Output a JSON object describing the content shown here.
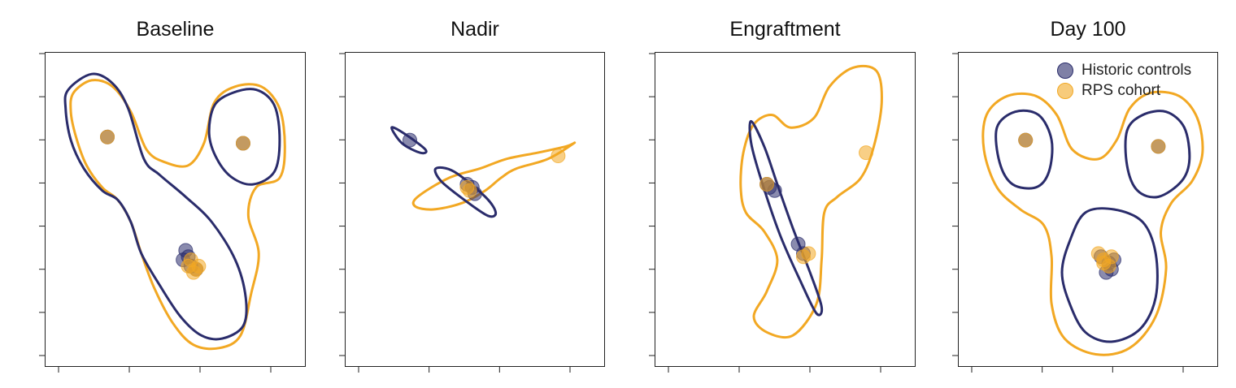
{
  "colors": {
    "historic": "#2a2c6b",
    "rps": "#f2a823"
  },
  "legend": {
    "historic_label": "Historic controls",
    "rps_label": "RPS cohort"
  },
  "chart_data": [
    {
      "type": "scatter",
      "title": "Baseline",
      "xlabel": "",
      "ylabel": "",
      "xlim": [
        0,
        10
      ],
      "ylim": [
        0,
        10
      ],
      "grid": false,
      "series": [
        {
          "name": "Historic controls",
          "color": "#2a2c6b",
          "points": [
            [
              2.4,
              7.3
            ],
            [
              7.6,
              7.1
            ],
            [
              5.4,
              3.7
            ],
            [
              5.3,
              3.4
            ],
            [
              5.6,
              3.2
            ],
            [
              5.8,
              3.1
            ],
            [
              5.5,
              3.5
            ]
          ],
          "contours": [
            [
              [
                0.9,
                8.8
              ],
              [
                1.8,
                9.3
              ],
              [
                2.6,
                9.0
              ],
              [
                3.2,
                8.2
              ],
              [
                3.8,
                6.6
              ],
              [
                4.4,
                6.1
              ],
              [
                5.4,
                5.4
              ],
              [
                6.4,
                4.6
              ],
              [
                7.3,
                3.4
              ],
              [
                7.7,
                2.2
              ],
              [
                7.6,
                1.3
              ],
              [
                6.8,
                0.9
              ],
              [
                6.0,
                1.0
              ],
              [
                5.2,
                1.6
              ],
              [
                4.4,
                2.6
              ],
              [
                3.7,
                3.6
              ],
              [
                3.3,
                4.6
              ],
              [
                2.8,
                5.3
              ],
              [
                2.2,
                5.6
              ],
              [
                1.5,
                6.3
              ],
              [
                1.0,
                7.2
              ],
              [
                0.8,
                8.2
              ],
              [
                0.9,
                8.8
              ]
            ],
            [
              [
                6.5,
                8.3
              ],
              [
                7.2,
                8.7
              ],
              [
                8.1,
                8.8
              ],
              [
                8.8,
                8.3
              ],
              [
                9.0,
                7.2
              ],
              [
                8.8,
                6.2
              ],
              [
                8.0,
                5.8
              ],
              [
                7.2,
                6.0
              ],
              [
                6.6,
                6.6
              ],
              [
                6.3,
                7.4
              ],
              [
                6.5,
                8.3
              ]
            ]
          ]
        },
        {
          "name": "RPS cohort",
          "color": "#f2a823",
          "points": [
            [
              2.4,
              7.3
            ],
            [
              7.6,
              7.1
            ],
            [
              5.8,
              3.1
            ],
            [
              5.5,
              3.2
            ],
            [
              5.9,
              3.2
            ],
            [
              5.7,
              3.0
            ],
            [
              5.6,
              3.4
            ]
          ],
          "contours": [
            [
              [
                1.1,
                8.7
              ],
              [
                1.8,
                9.1
              ],
              [
                2.6,
                8.9
              ],
              [
                3.3,
                8.1
              ],
              [
                3.9,
                6.9
              ],
              [
                4.6,
                6.5
              ],
              [
                5.5,
                6.4
              ],
              [
                6.1,
                7.1
              ],
              [
                6.5,
                8.4
              ],
              [
                7.3,
                8.9
              ],
              [
                8.3,
                8.9
              ],
              [
                9.0,
                8.2
              ],
              [
                9.2,
                7.0
              ],
              [
                9.0,
                6.0
              ],
              [
                8.1,
                5.7
              ],
              [
                7.8,
                4.8
              ],
              [
                8.2,
                3.6
              ],
              [
                7.9,
                2.3
              ],
              [
                7.5,
                1.0
              ],
              [
                6.7,
                0.6
              ],
              [
                5.7,
                0.7
              ],
              [
                4.9,
                1.4
              ],
              [
                4.2,
                2.5
              ],
              [
                3.7,
                3.6
              ],
              [
                3.3,
                4.6
              ],
              [
                2.8,
                5.3
              ],
              [
                2.2,
                5.7
              ],
              [
                1.6,
                6.4
              ],
              [
                1.2,
                7.3
              ],
              [
                1.0,
                8.1
              ],
              [
                1.1,
                8.7
              ]
            ]
          ]
        }
      ]
    },
    {
      "type": "scatter",
      "title": "Nadir",
      "xlabel": "",
      "ylabel": "",
      "xlim": [
        0,
        10
      ],
      "ylim": [
        0,
        10
      ],
      "grid": false,
      "series": [
        {
          "name": "Historic controls",
          "color": "#2a2c6b",
          "points": [
            [
              2.5,
              7.2
            ],
            [
              4.7,
              5.8
            ],
            [
              5.0,
              5.5
            ],
            [
              4.9,
              5.7
            ]
          ],
          "contours": [
            [
              [
                1.8,
                7.6
              ],
              [
                2.3,
                7.4
              ],
              [
                3.1,
                6.9
              ],
              [
                2.9,
                6.8
              ],
              [
                2.2,
                7.1
              ],
              [
                1.8,
                7.6
              ]
            ],
            [
              [
                3.5,
                6.3
              ],
              [
                4.2,
                6.2
              ],
              [
                5.4,
                5.4
              ],
              [
                5.8,
                4.9
              ],
              [
                5.5,
                4.8
              ],
              [
                4.6,
                5.3
              ],
              [
                3.7,
                5.9
              ],
              [
                3.5,
                6.3
              ]
            ]
          ]
        },
        {
          "name": "RPS cohort",
          "color": "#f2a823",
          "points": [
            [
              4.7,
              5.7
            ],
            [
              4.8,
              5.6
            ],
            [
              8.2,
              6.7
            ]
          ],
          "contours": [
            [
              [
                2.8,
                5.4
              ],
              [
                4.0,
                6.0
              ],
              [
                5.2,
                6.3
              ],
              [
                6.2,
                6.6
              ],
              [
                7.4,
                6.8
              ],
              [
                8.5,
                7.0
              ],
              [
                8.8,
                7.1
              ],
              [
                7.8,
                6.6
              ],
              [
                6.6,
                6.3
              ],
              [
                6.0,
                6.0
              ],
              [
                5.4,
                5.6
              ],
              [
                4.5,
                5.2
              ],
              [
                3.4,
                5.0
              ],
              [
                2.7,
                5.1
              ],
              [
                2.8,
                5.4
              ]
            ]
          ]
        }
      ]
    },
    {
      "type": "scatter",
      "title": "Engraftment",
      "xlabel": "",
      "ylabel": "",
      "xlim": [
        0,
        10
      ],
      "ylim": [
        0,
        10
      ],
      "grid": false,
      "series": [
        {
          "name": "Historic controls",
          "color": "#2a2c6b",
          "points": [
            [
              4.3,
              5.8
            ],
            [
              4.6,
              5.6
            ],
            [
              4.4,
              5.7
            ],
            [
              5.5,
              3.9
            ],
            [
              5.7,
              3.6
            ]
          ],
          "contours": [
            [
              [
                3.7,
                7.8
              ],
              [
                4.2,
                7.0
              ],
              [
                4.7,
                5.8
              ],
              [
                5.3,
                4.4
              ],
              [
                6.0,
                2.9
              ],
              [
                6.4,
                1.9
              ],
              [
                6.2,
                1.7
              ],
              [
                5.6,
                2.7
              ],
              [
                4.8,
                4.2
              ],
              [
                4.1,
                5.9
              ],
              [
                3.7,
                7.1
              ],
              [
                3.7,
                7.8
              ]
            ]
          ]
        },
        {
          "name": "RPS cohort",
          "color": "#f2a823",
          "points": [
            [
              4.3,
              5.8
            ],
            [
              5.7,
              3.5
            ],
            [
              5.9,
              3.6
            ],
            [
              8.1,
              6.8
            ]
          ],
          "contours": [
            [
              [
                3.8,
                7.7
              ],
              [
                4.5,
                8.0
              ],
              [
                5.2,
                7.6
              ],
              [
                6.1,
                7.9
              ],
              [
                6.7,
                8.9
              ],
              [
                7.6,
                9.5
              ],
              [
                8.5,
                9.4
              ],
              [
                8.7,
                8.4
              ],
              [
                8.4,
                7.0
              ],
              [
                7.9,
                6.0
              ],
              [
                7.0,
                5.4
              ],
              [
                6.5,
                4.9
              ],
              [
                6.4,
                3.4
              ],
              [
                6.2,
                2.0
              ],
              [
                5.3,
                1.0
              ],
              [
                4.3,
                1.1
              ],
              [
                3.8,
                1.6
              ],
              [
                4.3,
                2.4
              ],
              [
                4.7,
                3.4
              ],
              [
                4.2,
                4.3
              ],
              [
                3.5,
                4.9
              ],
              [
                3.3,
                5.7
              ],
              [
                3.4,
                6.8
              ],
              [
                3.8,
                7.7
              ]
            ]
          ]
        }
      ]
    },
    {
      "type": "scatter",
      "title": "Day 100",
      "xlabel": "",
      "ylabel": "",
      "xlim": [
        0,
        10
      ],
      "ylim": [
        0,
        10
      ],
      "grid": false,
      "legend": "top-right",
      "series": [
        {
          "name": "Historic controls",
          "color": "#2a2c6b",
          "points": [
            [
              2.6,
              7.2
            ],
            [
              7.7,
              7.0
            ],
            [
              5.5,
              3.5
            ],
            [
              5.8,
              3.3
            ],
            [
              6.0,
              3.4
            ],
            [
              5.7,
              3.0
            ],
            [
              5.9,
              3.1
            ]
          ],
          "contours": [
            [
              [
                1.5,
                7.6
              ],
              [
                2.2,
                8.1
              ],
              [
                3.1,
                8.0
              ],
              [
                3.6,
                7.2
              ],
              [
                3.5,
                6.2
              ],
              [
                3.0,
                5.7
              ],
              [
                2.1,
                5.8
              ],
              [
                1.6,
                6.5
              ],
              [
                1.5,
                7.6
              ]
            ],
            [
              [
                6.5,
                7.5
              ],
              [
                7.1,
                8.0
              ],
              [
                8.0,
                8.1
              ],
              [
                8.7,
                7.6
              ],
              [
                8.9,
                6.6
              ],
              [
                8.6,
                5.9
              ],
              [
                7.7,
                5.4
              ],
              [
                6.9,
                5.6
              ],
              [
                6.5,
                6.4
              ],
              [
                6.5,
                7.5
              ]
            ],
            [
              [
                4.3,
                4.0
              ],
              [
                4.9,
                4.9
              ],
              [
                6.0,
                5.0
              ],
              [
                7.1,
                4.6
              ],
              [
                7.6,
                3.6
              ],
              [
                7.6,
                2.2
              ],
              [
                7.0,
                1.2
              ],
              [
                5.9,
                0.8
              ],
              [
                4.9,
                1.1
              ],
              [
                4.3,
                2.0
              ],
              [
                4.0,
                3.0
              ],
              [
                4.3,
                4.0
              ]
            ]
          ]
        },
        {
          "name": "RPS cohort",
          "color": "#f2a823",
          "points": [
            [
              2.6,
              7.2
            ],
            [
              7.7,
              7.0
            ],
            [
              5.4,
              3.6
            ],
            [
              5.6,
              3.4
            ],
            [
              5.9,
              3.5
            ],
            [
              5.8,
              3.2
            ],
            [
              5.6,
              3.3
            ]
          ],
          "contours": [
            [
              [
                1.1,
                8.0
              ],
              [
                1.9,
                8.6
              ],
              [
                3.0,
                8.6
              ],
              [
                3.8,
                8.0
              ],
              [
                4.4,
                6.9
              ],
              [
                5.4,
                6.6
              ],
              [
                6.1,
                7.2
              ],
              [
                6.6,
                8.2
              ],
              [
                7.4,
                8.7
              ],
              [
                8.5,
                8.6
              ],
              [
                9.2,
                7.9
              ],
              [
                9.4,
                6.8
              ],
              [
                9.0,
                5.9
              ],
              [
                8.2,
                5.2
              ],
              [
                7.8,
                4.3
              ],
              [
                8.0,
                3.1
              ],
              [
                7.6,
                1.6
              ],
              [
                6.6,
                0.6
              ],
              [
                5.3,
                0.4
              ],
              [
                4.1,
                0.9
              ],
              [
                3.6,
                2.0
              ],
              [
                3.6,
                3.5
              ],
              [
                3.3,
                4.5
              ],
              [
                2.4,
                5.0
              ],
              [
                1.5,
                5.7
              ],
              [
                1.0,
                6.9
              ],
              [
                1.1,
                8.0
              ]
            ]
          ]
        }
      ]
    }
  ]
}
